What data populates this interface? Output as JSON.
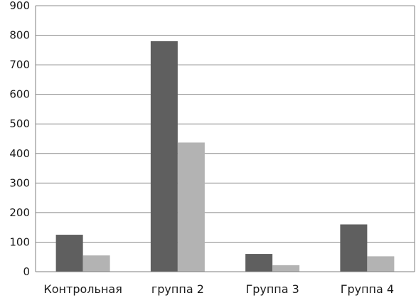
{
  "chart_data": {
    "type": "bar",
    "categories": [
      "Контрольная",
      "группа 2",
      "Группа 3",
      "Группа 4"
    ],
    "series": [
      {
        "values": [
          125,
          780,
          60,
          160
        ],
        "color": "#5f5f5f"
      },
      {
        "values": [
          55,
          437,
          22,
          52
        ],
        "color": "#b3b3b3"
      }
    ],
    "ylim": [
      0,
      900
    ],
    "yticks": [
      0,
      100,
      200,
      300,
      400,
      500,
      600,
      700,
      800,
      900
    ],
    "grid": true,
    "legend": "none",
    "gridline_color": "#8c8c8c",
    "axis_color": "#7f7f7f"
  }
}
